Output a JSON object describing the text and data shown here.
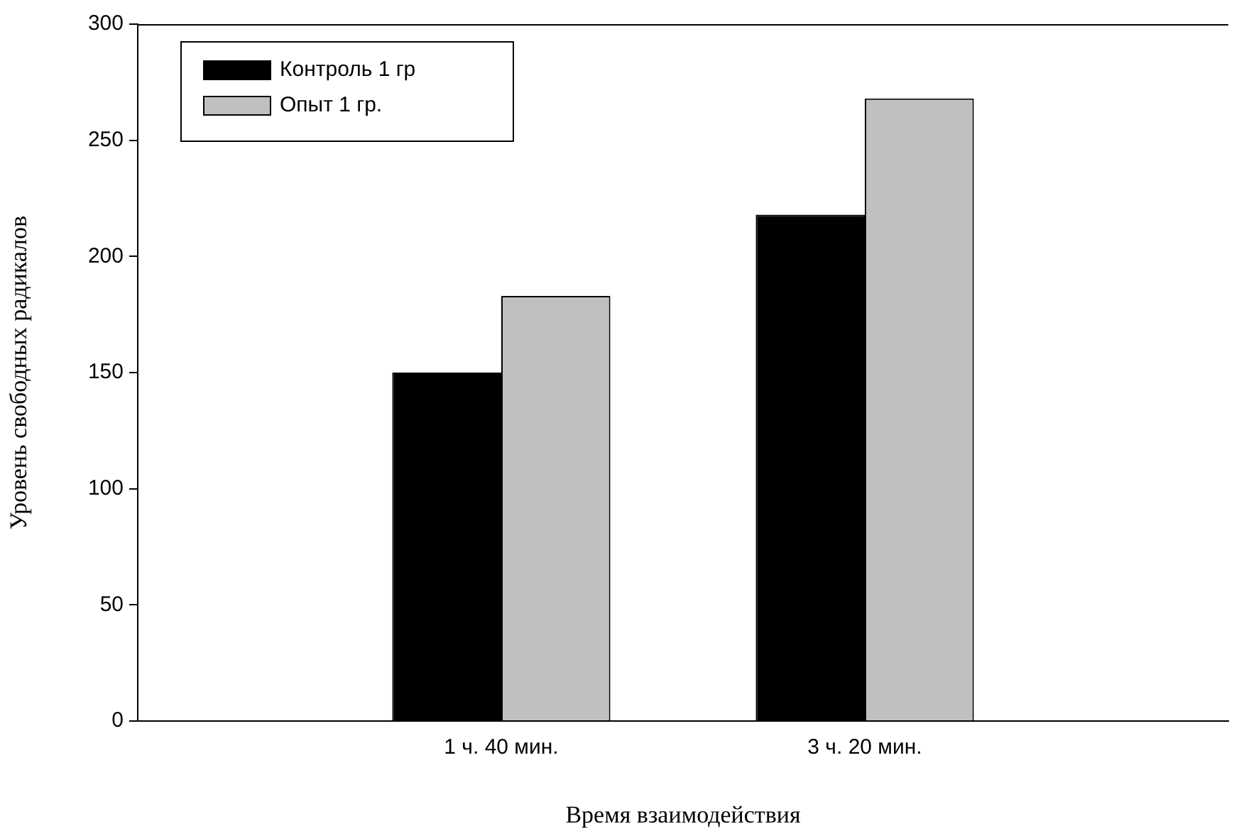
{
  "chart_data": {
    "type": "bar",
    "xlabel": "Время взаимодействия",
    "ylabel": "Уровень свободных радикалов",
    "categories": [
      null,
      "1 ч. 40 мин.",
      "3 ч. 20 мин.",
      null
    ],
    "series": [
      {
        "name": "Контроль 1 гр",
        "color": "#000000",
        "values": [
          null,
          150,
          218,
          null
        ]
      },
      {
        "name": "Опыт 1 гр.",
        "color": "#c0c0c0",
        "values": [
          null,
          183,
          268,
          null
        ]
      }
    ],
    "ylim": [
      0,
      300
    ],
    "yticks": [
      0,
      50,
      100,
      150,
      200,
      250,
      300
    ],
    "grid": false,
    "legend": "top left"
  }
}
